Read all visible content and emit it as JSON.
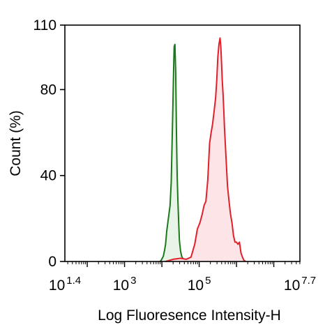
{
  "chart_data": {
    "type": "area",
    "title": "",
    "xlabel": "Log Fluoresence Intensity-H",
    "ylabel": "Count  (%)",
    "x_scale": "log10",
    "xlim_log10": [
      1.4,
      7.7
    ],
    "ylim": [
      0,
      110
    ],
    "grid": false,
    "legend": "none",
    "x_tick_labels": [
      {
        "base": "10",
        "exp": "1.4",
        "log10": 1.4
      },
      {
        "base": "10",
        "exp": "3",
        "log10": 3
      },
      {
        "base": "10",
        "exp": "5",
        "log10": 5
      },
      {
        "base": "10",
        "exp": "7.7",
        "log10": 7.7
      }
    ],
    "y_ticks": [
      0,
      40,
      80,
      110
    ],
    "series": [
      {
        "color": "#1a7a1a",
        "fill": "#e8f4e8",
        "x_log10": [
          3.95,
          3.98,
          4.01,
          4.04,
          4.07,
          4.1,
          4.13,
          4.16,
          4.19,
          4.22,
          4.25,
          4.27,
          4.29,
          4.31,
          4.33,
          4.35,
          4.37,
          4.39,
          4.41,
          4.43,
          4.45,
          4.47,
          4.5,
          4.53,
          4.56,
          4.59,
          4.62,
          4.65,
          4.68
        ],
        "y": [
          0,
          0.5,
          1.5,
          2.5,
          5,
          8,
          14,
          18,
          22,
          26,
          37,
          52,
          68,
          86,
          100,
          101,
          88,
          62,
          40,
          28,
          18,
          10,
          5,
          2.5,
          1.5,
          1,
          0.5,
          0.3,
          0
        ]
      },
      {
        "color": "#e0202a",
        "fill": "#fde4e6",
        "x_log10": [
          4.1,
          4.3,
          4.5,
          4.65,
          4.78,
          4.88,
          4.95,
          5.02,
          5.08,
          5.13,
          5.18,
          5.23,
          5.28,
          5.32,
          5.36,
          5.4,
          5.44,
          5.47,
          5.5,
          5.53,
          5.56,
          5.58,
          5.6,
          5.62,
          5.64,
          5.66,
          5.68,
          5.7,
          5.73,
          5.76,
          5.8,
          5.84,
          5.88,
          5.92,
          5.96,
          6.0,
          6.04,
          6.08,
          6.12,
          6.16,
          6.2,
          6.25
        ],
        "y": [
          0,
          1,
          1.5,
          1,
          2,
          8,
          15,
          18,
          22,
          26,
          28,
          38,
          55,
          60,
          64,
          70,
          76,
          84,
          95,
          101,
          104,
          100,
          92,
          84,
          78,
          70,
          62,
          55,
          45,
          35,
          28,
          22,
          18,
          12,
          9,
          9,
          8,
          9,
          4,
          2,
          0.5,
          0
        ]
      }
    ]
  }
}
